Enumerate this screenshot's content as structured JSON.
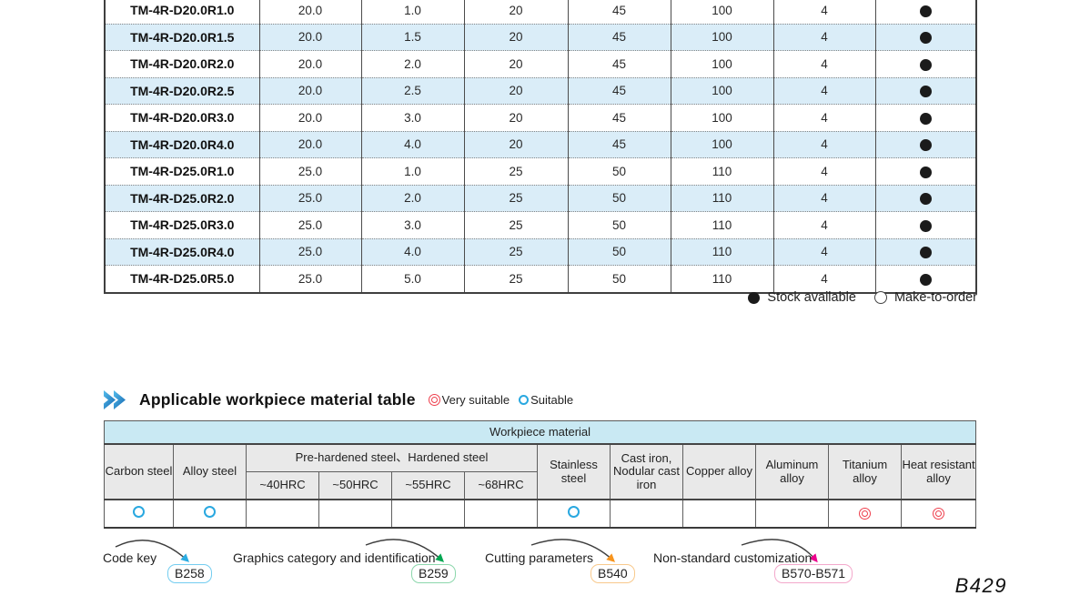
{
  "spec_table": {
    "rows": [
      {
        "model": "TM-4R-D20.0R1.0",
        "values": [
          "20.0",
          "1.0",
          "20",
          "45",
          "100",
          "4"
        ],
        "stock": "available"
      },
      {
        "model": "TM-4R-D20.0R1.5",
        "values": [
          "20.0",
          "1.5",
          "20",
          "45",
          "100",
          "4"
        ],
        "stock": "available"
      },
      {
        "model": "TM-4R-D20.0R2.0",
        "values": [
          "20.0",
          "2.0",
          "20",
          "45",
          "100",
          "4"
        ],
        "stock": "available"
      },
      {
        "model": "TM-4R-D20.0R2.5",
        "values": [
          "20.0",
          "2.5",
          "20",
          "45",
          "100",
          "4"
        ],
        "stock": "available"
      },
      {
        "model": "TM-4R-D20.0R3.0",
        "values": [
          "20.0",
          "3.0",
          "20",
          "45",
          "100",
          "4"
        ],
        "stock": "available"
      },
      {
        "model": "TM-4R-D20.0R4.0",
        "values": [
          "20.0",
          "4.0",
          "20",
          "45",
          "100",
          "4"
        ],
        "stock": "available"
      },
      {
        "model": "TM-4R-D25.0R1.0",
        "values": [
          "25.0",
          "1.0",
          "25",
          "50",
          "110",
          "4"
        ],
        "stock": "available"
      },
      {
        "model": "TM-4R-D25.0R2.0",
        "values": [
          "25.0",
          "2.0",
          "25",
          "50",
          "110",
          "4"
        ],
        "stock": "available"
      },
      {
        "model": "TM-4R-D25.0R3.0",
        "values": [
          "25.0",
          "3.0",
          "25",
          "50",
          "110",
          "4"
        ],
        "stock": "available"
      },
      {
        "model": "TM-4R-D25.0R4.0",
        "values": [
          "25.0",
          "4.0",
          "25",
          "50",
          "110",
          "4"
        ],
        "stock": "available"
      },
      {
        "model": "TM-4R-D25.0R5.0",
        "values": [
          "25.0",
          "5.0",
          "25",
          "50",
          "110",
          "4"
        ],
        "stock": "available"
      }
    ]
  },
  "stock_legend": {
    "available_label": "Stock available",
    "make_to_order_label": "Make-to-order"
  },
  "material_section": {
    "title": "Applicable workpiece material table",
    "legend": {
      "very_suitable_label": "Very suitable",
      "suitable_label": "Suitable"
    },
    "table": {
      "banner": "Workpiece material",
      "groups": [
        {
          "label": "Carbon steel",
          "rating": "suitable"
        },
        {
          "label": "Alloy steel",
          "rating": "suitable"
        },
        {
          "label": "Pre-hardened steel、Hardened steel",
          "subcolumns": [
            {
              "label": "~40HRC",
              "rating": ""
            },
            {
              "label": "~50HRC",
              "rating": ""
            },
            {
              "label": "~55HRC",
              "rating": ""
            },
            {
              "label": "~68HRC",
              "rating": ""
            }
          ]
        },
        {
          "label": "Stainless steel",
          "rating": "suitable"
        },
        {
          "label": "Cast iron, Nodular cast iron",
          "rating": ""
        },
        {
          "label": "Copper alloy",
          "rating": ""
        },
        {
          "label": "Aluminum alloy",
          "rating": ""
        },
        {
          "label": "Titanium alloy",
          "rating": "very-suitable"
        },
        {
          "label": "Heat resistant alloy",
          "rating": "very-suitable"
        }
      ]
    }
  },
  "footnotes": [
    {
      "label": "Code key",
      "ref": "B258",
      "arrow_color": "#2bace2",
      "badge_border_color": "#74cdf0"
    },
    {
      "label": "Graphics category and identification",
      "ref": "B259",
      "arrow_color": "#00a651",
      "badge_border_color": "#8cd7ac"
    },
    {
      "label": "Cutting parameters",
      "ref": "B540",
      "arrow_color": "#f7941d",
      "badge_border_color": "#f8c98c"
    },
    {
      "label": "Non-standard customization",
      "ref": "B570-B571",
      "arrow_color": "#ec008c",
      "badge_border_color": "#f3a8cb"
    }
  ],
  "colors": {
    "alt_row": "#daedf8",
    "banner_bg": "#c9e9f3",
    "header_bg": "#e9e9e9",
    "suitable_blue": "#29a8e0",
    "very_suitable_red": "#ee3f4d",
    "stock_dot": "#1b1b1b",
    "title_arrow_blue_light": "#54bdec",
    "title_arrow_blue_dark": "#1566b0"
  },
  "page_number": "B429"
}
